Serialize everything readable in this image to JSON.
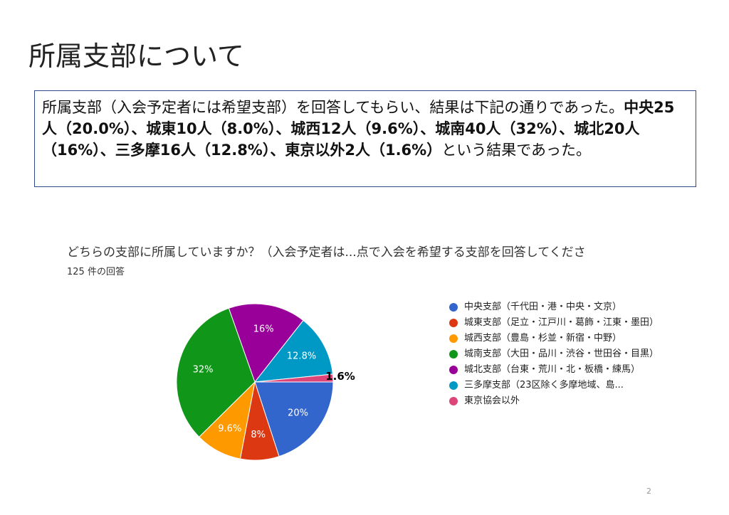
{
  "slide_title": "所属支部について",
  "description": [
    {
      "text": "所属支部（入会予定者には希望支部）を回答してもらい、結果は下記の通りであった。",
      "bold": false
    },
    {
      "text": "中央25人（20.0%）、城東10人（8.0%）、城西12人（9.6%）、城南40人（32%）、城北20人（16%）、三多摩16人（12.8%）、東京以外2人（1.6%）",
      "bold": true
    },
    {
      "text": "という結果であった。",
      "bold": false
    }
  ],
  "chart_data": {
    "type": "pie",
    "title": "どちらの支部に所属していますか？（入会予定者は...点で入会を希望する支部を回答してくださ",
    "subtitle": "125 件の回答",
    "categories": [
      "中央支部（千代田・港・中央・文京）",
      "城東支部（足立・江戸川・葛飾・江東・墨田）",
      "城西支部（豊島・杉並・新宿・中野）",
      "城南支部（大田・品川・渋谷・世田谷・目黒）",
      "城北支部（台東・荒川・北・板橋・練馬）",
      "三多摩支部（23区除く多摩地域、島...",
      "東京協会以外"
    ],
    "values": [
      20,
      8,
      9.6,
      32,
      16,
      12.8,
      1.6
    ],
    "value_labels": [
      "20%",
      "8%",
      "9.6%",
      "32%",
      "16%",
      "12.8%",
      "1.6%"
    ],
    "colors": [
      "#3366cc",
      "#dc3912",
      "#ff9900",
      "#109618",
      "#990099",
      "#0099c6",
      "#dd4477"
    ]
  },
  "page_number": "2"
}
